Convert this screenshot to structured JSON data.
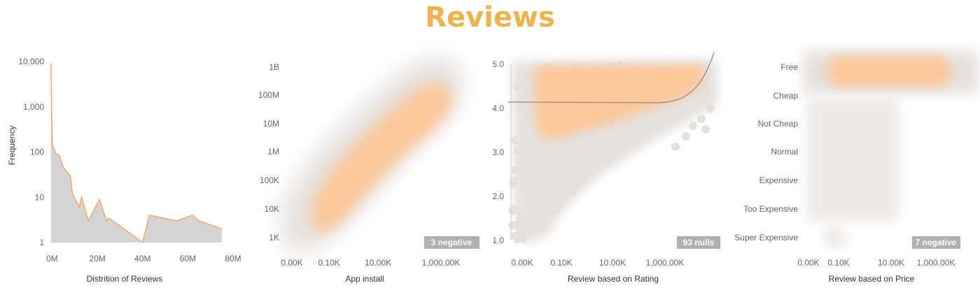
{
  "title": "Reviews",
  "colors": {
    "title": "#f0b24a",
    "area_fill": "#d4d4d4",
    "area_line": "#f5a45a",
    "density_hot": "#fcc89a",
    "density_cool": "#e4e1df",
    "trend_line": "#888888",
    "badge": "#b0b0b0"
  },
  "chart_data": [
    {
      "type": "area",
      "xlabel": "Distrition of Reviews",
      "ylabel": "Frequency",
      "y_scale": "log",
      "ylim": [
        1,
        10000
      ],
      "xlim": [
        -2,
        80
      ],
      "x_unit": "M",
      "x_ticks": [
        "0M",
        "20M",
        "40M",
        "60M",
        "80M"
      ],
      "y_ticks": [
        "10,000",
        "1,000",
        "100",
        "10",
        "1"
      ],
      "x": [
        -0.5,
        0,
        1.5,
        3,
        5,
        8,
        9,
        12,
        13,
        16,
        21,
        24,
        25,
        40,
        43,
        55,
        62,
        65,
        75
      ],
      "values": [
        9000,
        150,
        95,
        85,
        45,
        30,
        12,
        6,
        10,
        3,
        9,
        3,
        3.5,
        1,
        4,
        3,
        4,
        3,
        2
      ]
    },
    {
      "type": "heatmap",
      "xlabel": "App install",
      "x_ticks": [
        "0.00K",
        "0.10K",
        "10.00K",
        "1,000.00K"
      ],
      "y_ticks": [
        "1B",
        "100M",
        "10M",
        "1M",
        "100K",
        "10K",
        "1K"
      ],
      "badge": "3 negative"
    },
    {
      "type": "scatter",
      "xlabel": "Review based on Rating",
      "x_ticks": [
        "0.00K",
        "0.10K",
        "10.00K",
        "1,000.00K"
      ],
      "y_ticks": [
        "5.0",
        "4.0",
        "3.0",
        "2.0",
        "1.0"
      ],
      "ylim": [
        0.9,
        5.2
      ],
      "badge": "93 nulls"
    },
    {
      "type": "heatmap",
      "xlabel": "Review based on Price",
      "x_ticks": [
        "0.00K",
        "0.10K",
        "10.00K",
        "1,000.00K"
      ],
      "categories": [
        "Free",
        "Cheap",
        "Not Cheap",
        "Normal",
        "Expensive",
        "Too Expensive",
        "Super Expensive"
      ],
      "badge": "7 negative"
    }
  ]
}
